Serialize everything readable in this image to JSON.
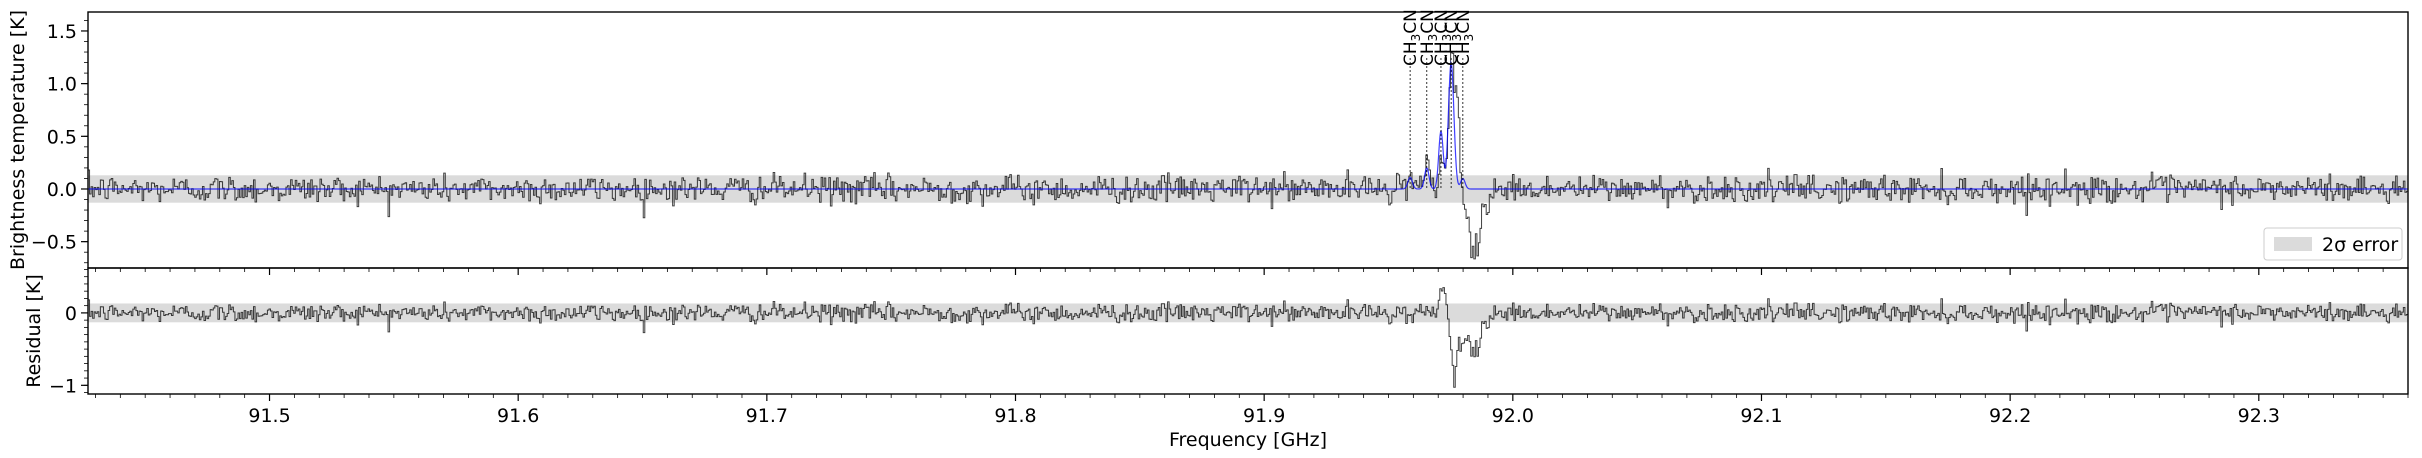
{
  "chart_data": [
    {
      "type": "line",
      "panel": "top",
      "ylabel": "Brightness temperature [K]",
      "xlim": [
        91.427,
        92.36
      ],
      "ylim": [
        -0.75,
        1.68
      ],
      "yticks": [
        "1.5",
        "1.0",
        "0.5",
        "0.0",
        "−0.5"
      ],
      "ytick_values": [
        1.5,
        1.0,
        0.5,
        0.0,
        -0.5
      ],
      "error_band": [
        -0.13,
        0.13
      ],
      "legend": {
        "placement": "lower-right",
        "label": "2σ error"
      },
      "line_labels": [
        {
          "x": 91.9587,
          "text": "CH3CN",
          "text_main": "CH",
          "text_sub": "3",
          "text_tail": "CN"
        },
        {
          "x": 91.9654,
          "text": "CH3CN",
          "text_main": "CH",
          "text_sub": "3",
          "text_tail": "CN"
        },
        {
          "x": 91.9711,
          "text": "CH3CN",
          "text_main": "CH",
          "text_sub": "3",
          "text_tail": "CN"
        },
        {
          "x": 91.9752,
          "text": "CH3CN",
          "text_main": "CH",
          "text_sub": "3",
          "text_tail": "CN"
        },
        {
          "x": 91.9799,
          "text": "CH3CN",
          "text_main": "CH",
          "text_sub": "3",
          "text_tail": "CN"
        }
      ],
      "series": [
        {
          "style": "observed spectrum (black step line)",
          "generator": "noise",
          "noise_sigma": 0.065,
          "features": [
            {
              "x": 91.9535,
              "y": 0.07
            },
            {
              "x": 91.9587,
              "y": 0.18
            },
            {
              "x": 91.9654,
              "y": 0.25
            },
            {
              "x": 91.9711,
              "y": 0.42
            },
            {
              "x": 91.9752,
              "y": 1.22
            },
            {
              "x": 91.9775,
              "y": 0.65
            },
            {
              "x": 91.981,
              "y": -0.32
            },
            {
              "x": 91.9835,
              "y": -0.62
            },
            {
              "x": 91.986,
              "y": -0.45
            },
            {
              "x": 91.989,
              "y": -0.18
            }
          ]
        },
        {
          "style": "model fit (blue line)",
          "peaks": [
            {
              "x": 91.9587,
              "amp": 0.11,
              "width": 0.0009
            },
            {
              "x": 91.9654,
              "amp": 0.2,
              "width": 0.0009
            },
            {
              "x": 91.9711,
              "amp": 0.55,
              "width": 0.0009
            },
            {
              "x": 91.9752,
              "amp": 1.2,
              "width": 0.0011
            },
            {
              "x": 91.9799,
              "amp": 0.1,
              "width": 0.0009
            }
          ]
        }
      ]
    },
    {
      "type": "line",
      "panel": "bottom",
      "ylabel": "Residual [K]",
      "xlabel": "Frequency [GHz]",
      "xlim": [
        91.427,
        92.36
      ],
      "ylim": [
        -1.12,
        0.62
      ],
      "yticks": [
        "0",
        "−1"
      ],
      "ytick_values": [
        0,
        -1
      ],
      "xticks": [
        "91.5",
        "91.6",
        "91.7",
        "91.8",
        "91.9",
        "92.0",
        "92.1",
        "92.2",
        "92.3"
      ],
      "xtick_values": [
        91.5,
        91.6,
        91.7,
        91.8,
        91.9,
        92.0,
        92.1,
        92.2,
        92.3
      ],
      "error_band": [
        -0.13,
        0.13
      ],
      "series": [
        {
          "style": "residual (black step line)",
          "generator": "noise",
          "noise_sigma": 0.065,
          "features": [
            {
              "x": 91.9705,
              "y": 0.22
            },
            {
              "x": 91.9718,
              "y": 0.35
            },
            {
              "x": 91.9745,
              "y": -0.35
            },
            {
              "x": 91.9765,
              "y": -0.88
            },
            {
              "x": 91.979,
              "y": -0.3
            },
            {
              "x": 91.981,
              "y": -0.4
            },
            {
              "x": 91.9835,
              "y": -0.55
            },
            {
              "x": 91.986,
              "y": -0.42
            },
            {
              "x": 91.989,
              "y": -0.15
            }
          ]
        }
      ]
    }
  ]
}
